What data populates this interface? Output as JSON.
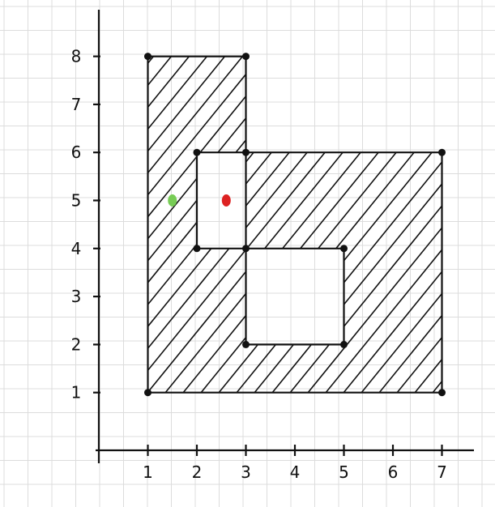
{
  "diagram": {
    "x_tick_labels": [
      "1",
      "2",
      "3",
      "4",
      "5",
      "6",
      "7"
    ],
    "y_tick_labels": [
      "1",
      "2",
      "3",
      "4",
      "5",
      "6",
      "7",
      "8"
    ],
    "outer_region_vertices": [
      [
        1,
        8
      ],
      [
        3,
        8
      ],
      [
        3,
        6
      ],
      [
        7,
        6
      ],
      [
        7,
        1
      ],
      [
        1,
        1
      ]
    ],
    "inner_polygon_vertices": [
      [
        2,
        6
      ],
      [
        2,
        4
      ],
      [
        3,
        4
      ],
      [
        3,
        2
      ],
      [
        5,
        2
      ],
      [
        5,
        4
      ],
      [
        3,
        4
      ],
      [
        3,
        6
      ]
    ],
    "points": [
      {
        "id": "green-point",
        "x": 1.5,
        "y": 5,
        "color": "#77cc55"
      },
      {
        "id": "red-point",
        "x": 2.6,
        "y": 5,
        "color": "#dd2222"
      }
    ],
    "colors": {
      "ink": "#111111",
      "grid": "#dcdcdc",
      "hatch": "#111111"
    }
  }
}
